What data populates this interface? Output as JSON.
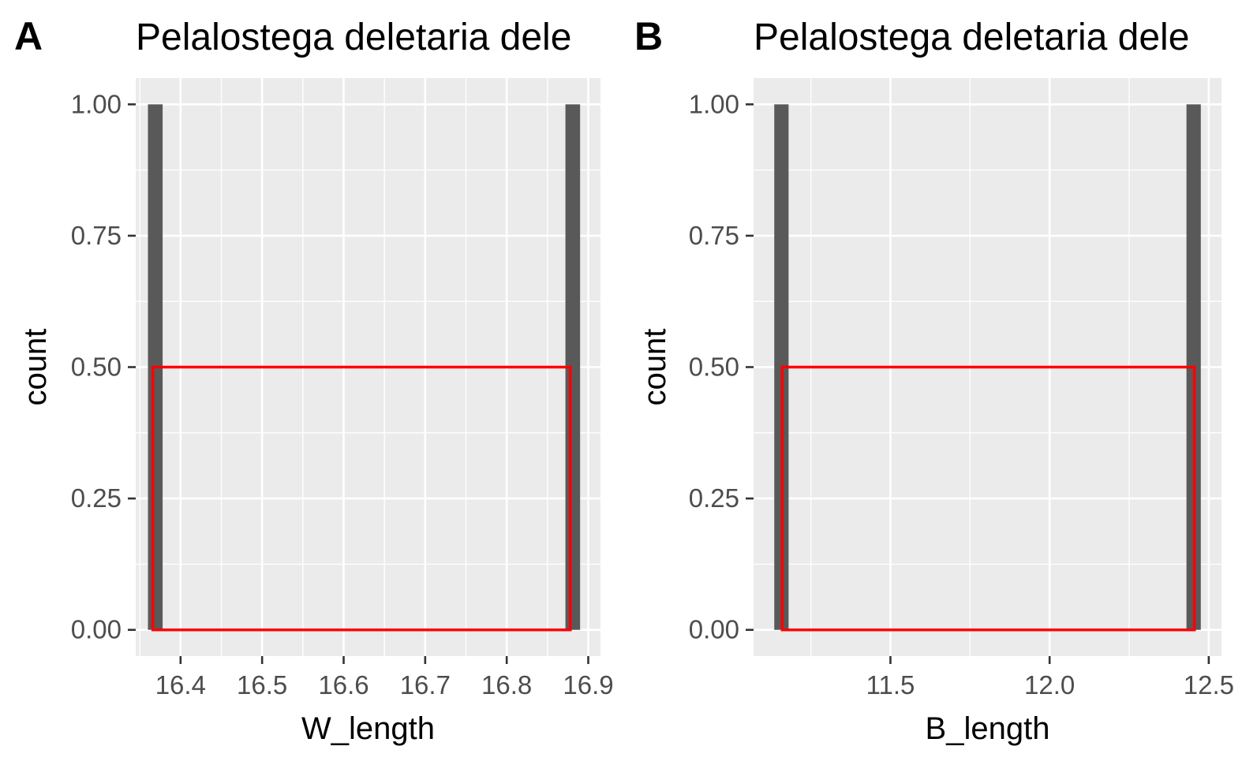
{
  "chart_data": [
    {
      "panel_label": "A",
      "type": "bar",
      "title": "Pelalostega deletaria dele",
      "xlabel": "W_length",
      "ylabel": "count",
      "xlim": [
        16.345,
        16.915
      ],
      "ylim": [
        -0.05,
        1.05
      ],
      "x_ticks": [
        16.4,
        16.5,
        16.6,
        16.7,
        16.8,
        16.9
      ],
      "x_tick_labels": [
        "16.4",
        "16.5",
        "16.6",
        "16.7",
        "16.8",
        "16.9"
      ],
      "y_ticks": [
        0,
        0.25,
        0.5,
        0.75,
        1.0
      ],
      "y_tick_labels": [
        "0.00",
        "0.25",
        "0.50",
        "0.75",
        "1.00"
      ],
      "grid": true,
      "bars": [
        {
          "x0": 16.36,
          "x1": 16.378,
          "count": 1
        },
        {
          "x0": 16.872,
          "x1": 16.89,
          "count": 1
        }
      ],
      "rect": {
        "x0": 16.366,
        "x1": 16.878,
        "y0": 0,
        "y1": 0.5
      },
      "colors": {
        "panel_bg": "#ebebeb",
        "grid": "#ffffff",
        "bar": "#595959",
        "rect": "#ff0000"
      }
    },
    {
      "panel_label": "B",
      "type": "bar",
      "title": "Pelalostega deletaria dele",
      "xlabel": "B_length",
      "ylabel": "count",
      "xlim": [
        11.07,
        12.54
      ],
      "ylim": [
        -0.05,
        1.05
      ],
      "x_ticks": [
        11.5,
        12.0,
        12.5
      ],
      "x_tick_labels": [
        "11.5",
        "12.0",
        "12.5"
      ],
      "y_ticks": [
        0,
        0.25,
        0.5,
        0.75,
        1.0
      ],
      "y_tick_labels": [
        "0.00",
        "0.25",
        "0.50",
        "0.75",
        "1.00"
      ],
      "grid": true,
      "bars": [
        {
          "x0": 11.135,
          "x1": 11.18,
          "count": 1
        },
        {
          "x0": 12.43,
          "x1": 12.475,
          "count": 1
        }
      ],
      "rect": {
        "x0": 11.16,
        "x1": 12.455,
        "y0": 0,
        "y1": 0.5
      },
      "colors": {
        "panel_bg": "#ebebeb",
        "grid": "#ffffff",
        "bar": "#595959",
        "rect": "#ff0000"
      }
    }
  ]
}
